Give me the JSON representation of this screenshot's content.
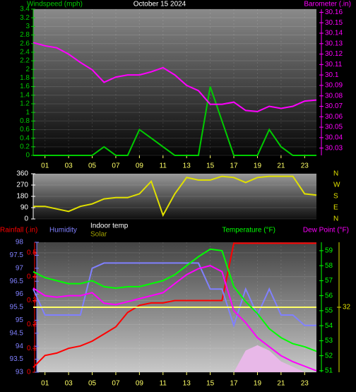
{
  "chart_data": [
    {
      "type": "line",
      "title": "October 15 2024",
      "x": [
        0,
        1,
        2,
        3,
        4,
        5,
        6,
        7,
        8,
        9,
        10,
        11,
        12,
        13,
        14,
        15,
        16,
        17,
        18,
        19,
        20,
        21,
        22,
        23,
        24
      ],
      "xlim": [
        0,
        24
      ],
      "xticks": [
        {
          "value": 1,
          "label": "01"
        },
        {
          "value": 3,
          "label": "03"
        },
        {
          "value": 5,
          "label": "05"
        },
        {
          "value": 7,
          "label": "07"
        },
        {
          "value": 9,
          "label": "09"
        },
        {
          "value": 11,
          "label": "11"
        },
        {
          "value": 13,
          "label": "13"
        },
        {
          "value": 15,
          "label": "15"
        },
        {
          "value": 17,
          "label": "17"
        },
        {
          "value": 19,
          "label": "19"
        },
        {
          "value": 21,
          "label": "21"
        },
        {
          "value": 23,
          "label": "23"
        }
      ],
      "ylim": [
        0,
        3.4
      ],
      "yticks": [
        0,
        0.2,
        0.4,
        0.6,
        0.8,
        1,
        1.2,
        1.4,
        1.6,
        1.8,
        2,
        2.2,
        2.4,
        2.6,
        2.8,
        3,
        3.2,
        3.4
      ],
      "y2lim": [
        30.023,
        30.163
      ],
      "y2ticks": [
        30.03,
        30.04,
        30.05,
        30.06,
        30.07,
        30.08,
        30.09,
        30.1,
        30.11,
        30.12,
        30.13,
        30.14,
        30.15,
        30.16
      ],
      "grid": true,
      "series": [
        {
          "name": "Windspeed (mph)",
          "color": "#00cc00",
          "axis": "y",
          "values": [
            0,
            0,
            0,
            0,
            0,
            0,
            0.2,
            0,
            0,
            0.6,
            0.4,
            0.2,
            0,
            0,
            0,
            1.6,
            0.8,
            0,
            0,
            0,
            0.6,
            0.2,
            0,
            0,
            0
          ]
        },
        {
          "name": "Barometer (.in)",
          "color": "#ff00ff",
          "axis": "y2",
          "values": [
            30.131,
            30.128,
            30.126,
            30.12,
            30.112,
            30.105,
            30.093,
            30.098,
            30.1,
            30.1,
            30.103,
            30.107,
            30.1,
            30.09,
            30.085,
            30.072,
            30.072,
            30.074,
            30.066,
            30.065,
            30.07,
            30.068,
            30.07,
            30.075,
            30.076
          ]
        }
      ]
    },
    {
      "type": "line",
      "x": [
        0,
        1,
        2,
        3,
        4,
        5,
        6,
        7,
        8,
        9,
        10,
        11,
        12,
        13,
        14,
        15,
        16,
        17,
        18,
        19,
        20,
        21,
        22,
        23,
        24
      ],
      "xlim": [
        0,
        24
      ],
      "ylim": [
        0,
        360
      ],
      "yticks": [
        0,
        90,
        180,
        270,
        360
      ],
      "y2lim": [
        0,
        360
      ],
      "y2ticks": [
        {
          "value": 360,
          "label": "N"
        },
        {
          "value": 270,
          "label": "W"
        },
        {
          "value": 180,
          "label": "S"
        },
        {
          "value": 90,
          "label": "E"
        },
        {
          "value": 0,
          "label": "N"
        }
      ],
      "grid": true,
      "series": [
        {
          "color": "#e0e000",
          "axis": "y",
          "values": [
            100,
            100,
            80,
            60,
            100,
            120,
            160,
            170,
            170,
            200,
            300,
            30,
            200,
            330,
            310,
            310,
            340,
            330,
            290,
            330,
            340,
            340,
            340,
            200,
            190
          ]
        }
      ]
    },
    {
      "type": "line",
      "x": [
        0,
        1,
        2,
        3,
        4,
        5,
        6,
        7,
        8,
        9,
        10,
        11,
        12,
        13,
        14,
        15,
        16,
        17,
        18,
        19,
        20,
        21,
        22,
        23,
        24
      ],
      "xlim": [
        0,
        24
      ],
      "xticks": [
        {
          "value": 1,
          "label": "01"
        },
        {
          "value": 3,
          "label": "03"
        },
        {
          "value": 5,
          "label": "05"
        },
        {
          "value": 7,
          "label": "07"
        },
        {
          "value": 9,
          "label": "09"
        },
        {
          "value": 11,
          "label": "11"
        },
        {
          "value": 13,
          "label": "13"
        },
        {
          "value": 15,
          "label": "15"
        },
        {
          "value": 17,
          "label": "17"
        },
        {
          "value": 19,
          "label": "19"
        },
        {
          "value": 21,
          "label": "21"
        },
        {
          "value": 23,
          "label": "23"
        }
      ],
      "ylim": [
        0,
        0.544
      ],
      "yticks": [
        0,
        0.1,
        0.2,
        0.3,
        0.4,
        0.5
      ],
      "y2lim": [
        50.9,
        59.56
      ],
      "y2ticks": [
        51,
        52,
        53,
        54,
        55,
        56,
        57,
        58,
        59
      ],
      "y3lim": [
        93,
        98
      ],
      "y3ticks": [
        93,
        93.5,
        94,
        94.5,
        95,
        95.5,
        96,
        96.5,
        97,
        97.5,
        98
      ],
      "y4lim": [
        20,
        44
      ],
      "y4ticks": [
        32
      ],
      "grid": true,
      "series": [
        {
          "name": "Rainfall (.in)",
          "color": "#ff0000",
          "axis": "y",
          "values": [
            0.02,
            0.07,
            0.08,
            0.1,
            0.11,
            0.13,
            0.16,
            0.19,
            0.25,
            0.28,
            0.29,
            0.29,
            0.3,
            0.3,
            0.3,
            0.3,
            0.3,
            0.54,
            0.54,
            0.54,
            0.54,
            0.54,
            0.54,
            0.54,
            0.54
          ]
        },
        {
          "name": "Humidity",
          "color": "#8080ff",
          "axis": "y3",
          "values": [
            96.2,
            95.2,
            95.2,
            95.2,
            95.2,
            97,
            97.2,
            97.2,
            97.2,
            97.2,
            97.2,
            97.2,
            97.2,
            97.2,
            97.2,
            96.2,
            96.2,
            94.8,
            96.2,
            95.2,
            96.2,
            95.2,
            95.2,
            94.8,
            94.8
          ]
        },
        {
          "name": "Indoor temp",
          "color": "#ffff66",
          "axis": "y4",
          "values": [
            32,
            32,
            32,
            32,
            32,
            32,
            32,
            32,
            32,
            32,
            32,
            32,
            32,
            32,
            32,
            32,
            32,
            32,
            32,
            32,
            32,
            32,
            32,
            32,
            32
          ]
        },
        {
          "name": "Solar",
          "color": "#e8b8e8",
          "axis": "y4",
          "area": true,
          "values": [
            20,
            20,
            20,
            20,
            20,
            20,
            20,
            20,
            20,
            20,
            20,
            20,
            20,
            20,
            20,
            20,
            20,
            20,
            24,
            25,
            24,
            22,
            21,
            20,
            20
          ]
        },
        {
          "name": "Temperature (°F)",
          "color": "#00ff00",
          "axis": "y2",
          "values": [
            57.6,
            57.2,
            57,
            56.8,
            56.8,
            57,
            56.6,
            56.5,
            56.6,
            56.6,
            56.8,
            57,
            57.4,
            58,
            58.6,
            59.1,
            59,
            56.6,
            55.6,
            54.8,
            53.8,
            53.2,
            52.8,
            52.6,
            52.3
          ]
        },
        {
          "name": "Dew Point (°F)",
          "color": "#ff00ff",
          "axis": "y2",
          "values": [
            56.5,
            56,
            55.9,
            56,
            56,
            56.2,
            55.5,
            55.4,
            55.6,
            55.8,
            56,
            56.2,
            56.8,
            57.4,
            57.8,
            58,
            57.6,
            55,
            54.2,
            53.2,
            52.6,
            52,
            51.6,
            51.3,
            51
          ]
        }
      ]
    }
  ]
}
